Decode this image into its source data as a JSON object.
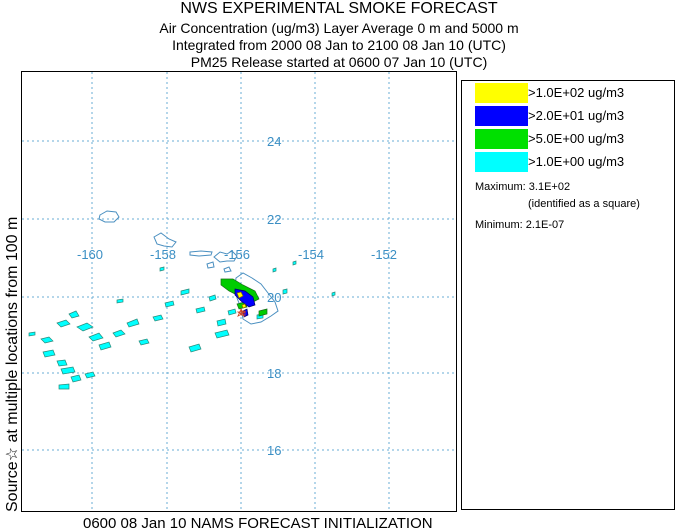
{
  "titles": {
    "line1": "NWS EXPERIMENTAL SMOKE FORECAST",
    "line2": "Air Concentration (ug/m3) Layer Average    0 m and  5000 m",
    "line3": "Integrated from 2000 08 Jan to 2100 08 Jan 10 (UTC)",
    "line4": "PM25 Release started at 0600 07 Jan 10 (UTC)"
  },
  "side_label": "Source☆ at multiple locations  from  100 m",
  "footer": "0600 08 Jan 10 NAMS FORECAST INITIALIZATION",
  "map": {
    "grid_color": "#6aaed6",
    "lon_labels": [
      "-160",
      "-158",
      "-156",
      "-154",
      "-152"
    ],
    "lat_labels": [
      "24",
      "22",
      "20",
      "18",
      "16"
    ]
  },
  "legend": {
    "items": [
      {
        "label": ">1.0E+02 ug/m3",
        "color": "#ffff00"
      },
      {
        "label": ">2.0E+01 ug/m3",
        "color": "#0000ff"
      },
      {
        "label": ">5.0E+00 ug/m3",
        "color": "#00e000"
      },
      {
        "label": ">1.0E+00 ug/m3",
        "color": "#00ffff"
      }
    ],
    "maximum": "Maximum: 3.1E+02",
    "maximum_note": "(identified as a square)",
    "minimum": "Minimum: 2.1E-07"
  }
}
